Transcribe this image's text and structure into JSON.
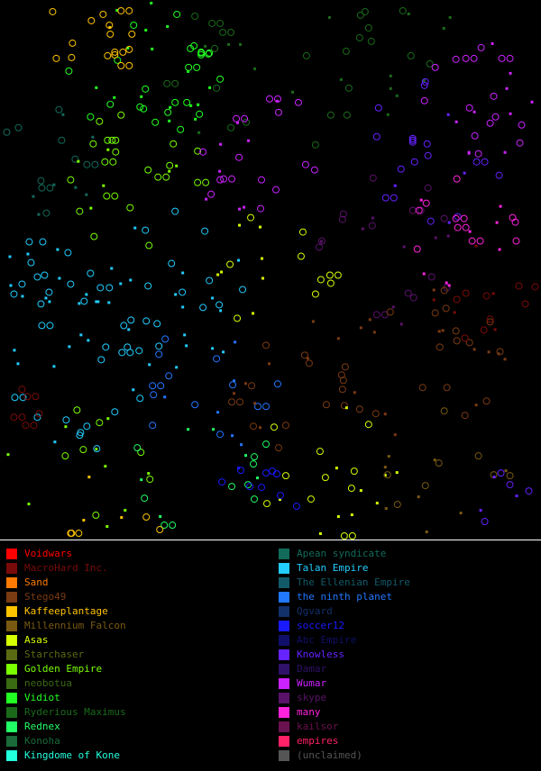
{
  "map": {
    "background": "#000000",
    "border_color": "#ffffff"
  },
  "legend": {
    "left": [
      {
        "label": "Voidwars",
        "color": "#ff0000"
      },
      {
        "label": "MacroHard Inc.",
        "color": "#7a0a0a"
      },
      {
        "label": "Sand",
        "color": "#ff7a00"
      },
      {
        "label": "Stego49",
        "color": "#7a3a12"
      },
      {
        "label": "Kaffeeplantage",
        "color": "#ffc400"
      },
      {
        "label": "Millennium Falcon",
        "color": "#7a5a12"
      },
      {
        "label": "Asas",
        "color": "#d8ff00"
      },
      {
        "label": "Starchaser",
        "color": "#5a6a12"
      },
      {
        "label": "Golden Empire",
        "color": "#7aff00"
      },
      {
        "label": "neobotua",
        "color": "#3a6a12"
      },
      {
        "label": "Vidiot",
        "color": "#22ff22"
      },
      {
        "label": "Ryderious Maximus",
        "color": "#1a6a1a"
      },
      {
        "label": "Rednex",
        "color": "#22ff66"
      },
      {
        "label": "Konoha",
        "color": "#1a6a3a"
      },
      {
        "label": "Kingdome of Kone",
        "color": "#22ffdd"
      }
    ],
    "right": [
      {
        "label": "Apean syndicate",
        "color": "#126a5a"
      },
      {
        "label": "Talan Empire",
        "color": "#22ccff"
      },
      {
        "label": "The Ellenian Empire",
        "color": "#125a6a"
      },
      {
        "label": "the ninth planet",
        "color": "#2277ff"
      },
      {
        "label": "Qgvard",
        "color": "#12306a"
      },
      {
        "label": "soccer12",
        "color": "#1a1aff"
      },
      {
        "label": "Abc Empire",
        "color": "#10106a"
      },
      {
        "label": "Knowless",
        "color": "#6622ff"
      },
      {
        "label": "Damar",
        "color": "#30126a"
      },
      {
        "label": "Wumar",
        "color": "#cc22ff"
      },
      {
        "label": "skype",
        "color": "#5a126a"
      },
      {
        "label": "many",
        "color": "#ff22dd"
      },
      {
        "label": "kailsor",
        "color": "#6a1250"
      },
      {
        "label": "empires",
        "color": "#ff2266"
      },
      {
        "label": "(unclaimed)",
        "color": "#555555"
      }
    ]
  }
}
